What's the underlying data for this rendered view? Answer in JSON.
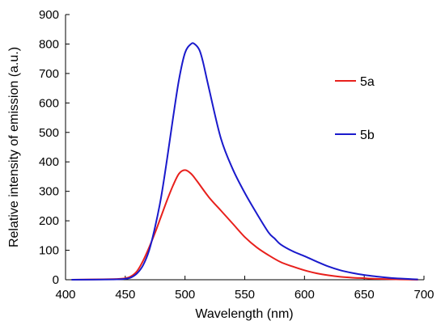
{
  "chart_data": {
    "type": "line",
    "xlabel": "Wavelength (nm)",
    "ylabel": "Relative intensity of emission (a.u.)",
    "xlim": [
      400,
      700
    ],
    "ylim": [
      0,
      900
    ],
    "xticks": [
      400,
      450,
      500,
      550,
      600,
      650,
      700
    ],
    "yticks": [
      0,
      100,
      200,
      300,
      400,
      500,
      600,
      700,
      800,
      900
    ],
    "grid": false,
    "legend_position": "right",
    "series": [
      {
        "name": "5a",
        "color": "#e8201c",
        "x": [
          405,
          440,
          450,
          455,
          460,
          465,
          470,
          475,
          480,
          485,
          490,
          495,
          500,
          505,
          510,
          520,
          530,
          540,
          550,
          560,
          570,
          580,
          590,
          600,
          610,
          620,
          630,
          640,
          650,
          660,
          670,
          680,
          695
        ],
        "y": [
          0,
          2,
          5,
          12,
          30,
          65,
          110,
          160,
          215,
          270,
          320,
          360,
          372,
          360,
          335,
          280,
          235,
          190,
          145,
          110,
          83,
          60,
          45,
          32,
          22,
          15,
          10,
          7,
          5,
          3,
          2,
          1,
          0
        ]
      },
      {
        "name": "5b",
        "color": "#1a1acc",
        "x": [
          405,
          440,
          450,
          455,
          460,
          465,
          470,
          475,
          480,
          485,
          490,
          495,
          500,
          505,
          508,
          512,
          515,
          520,
          530,
          540,
          550,
          560,
          570,
          575,
          580,
          590,
          600,
          610,
          620,
          630,
          640,
          650,
          660,
          670,
          680,
          695
        ],
        "y": [
          0,
          1,
          3,
          8,
          22,
          50,
          100,
          180,
          280,
          410,
          550,
          680,
          770,
          800,
          800,
          780,
          740,
          650,
          480,
          375,
          295,
          225,
          160,
          140,
          120,
          97,
          80,
          62,
          45,
          32,
          23,
          16,
          11,
          7,
          4,
          1
        ]
      }
    ]
  }
}
